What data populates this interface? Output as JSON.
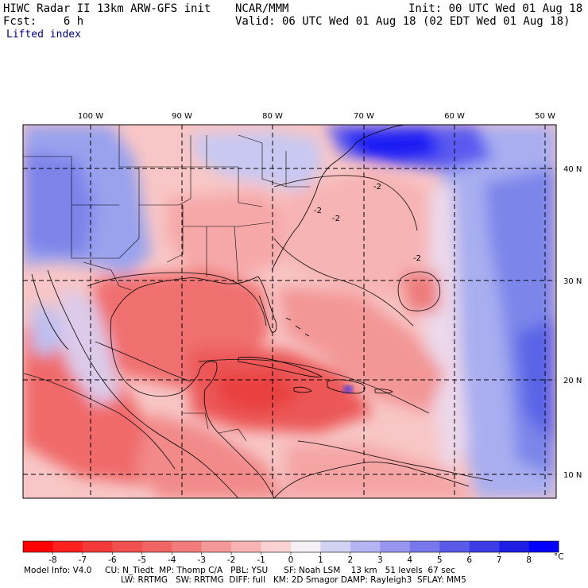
{
  "header": {
    "title": "HIWC Radar II 13km ARW-GFS init",
    "forecast": "Fcst:    6 h",
    "center": "NCAR/MMM",
    "init": "Init: 00 UTC Wed 01 Aug 18",
    "valid": "Valid: 06 UTC Wed 01 Aug 18 (02 EDT Wed 01 Aug 18)",
    "field": "Lifted index"
  },
  "map": {
    "lon_labels": [
      "100 W",
      "90 W",
      "80 W",
      "70 W",
      "60 W",
      "50 W"
    ],
    "lat_labels": [
      "40 N",
      "30 N",
      "20 N",
      "10 N"
    ],
    "contour_labels": [
      "-2",
      "-2",
      "-2",
      "-2"
    ]
  },
  "colorbar": {
    "ticks": [
      "-8",
      "-7",
      "-6",
      "-5",
      "-4",
      "-3",
      "-2",
      "-1",
      "0",
      "1",
      "2",
      "3",
      "4",
      "5",
      "6",
      "7",
      "8"
    ],
    "unit": "°C",
    "colors": [
      "#ff0000",
      "#ff2020",
      "#f23a3a",
      "#f05050",
      "#f06464",
      "#f27c7c",
      "#f59898",
      "#f8b4b4",
      "#fbd2d2",
      "#f4f0f6",
      "#d2d2f5",
      "#b4b4f2",
      "#9696ef",
      "#7878ec",
      "#5a5ae9",
      "#3c3ce6",
      "#1e1ee3",
      "#0000ff"
    ]
  },
  "footer": {
    "line1": "Model Info: V4.0     CU: N_Tiedt  MP: Thomp C/A   PBL: YSU      SF: Noah LSM    13 km   51 levels  67 sec",
    "line2": "LW: RRTMG   SW: RRTMG  DIFF: full   KM: 2D Smagor DAMP: Rayleigh3  SFLAY: MM5"
  }
}
